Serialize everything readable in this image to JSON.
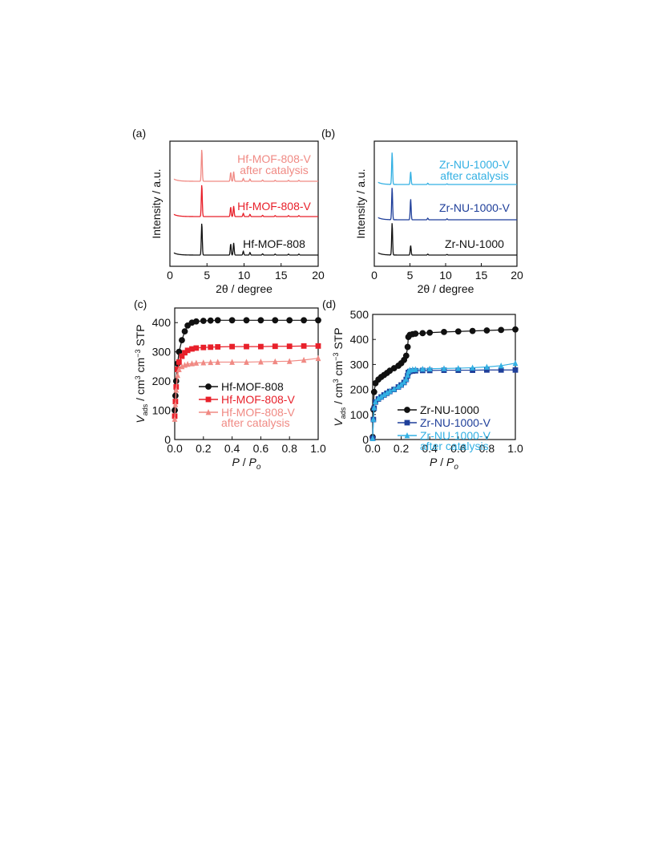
{
  "panels": {
    "a": {
      "label": "(a)"
    },
    "b": {
      "label": "(b)"
    },
    "c": {
      "label": "(c)"
    },
    "d": {
      "label": "(d)"
    }
  },
  "colors": {
    "black": "#111111",
    "red": "#e8202a",
    "salmon": "#f08a84",
    "dark_blue": "#1f3f9a",
    "light_blue": "#33b0e3"
  },
  "chart_data": [
    {
      "id": "a",
      "type": "line",
      "xlabel": "2θ / degree",
      "ylabel": "Intensity / a.u.",
      "xlim": [
        0,
        20
      ],
      "xticks": [
        0,
        5,
        10,
        15,
        20
      ],
      "y_ticks_shown": false,
      "series": [
        {
          "name": "Hf-MOF-808",
          "color": "#111111",
          "peaks": [
            [
              4.3,
              1.0
            ],
            [
              8.2,
              0.35
            ],
            [
              8.6,
              0.38
            ],
            [
              9.9,
              0.12
            ],
            [
              10.8,
              0.08
            ],
            [
              12.5,
              0.04
            ],
            [
              14.2,
              0.03
            ],
            [
              16.0,
              0.03
            ],
            [
              17.4,
              0.03
            ]
          ]
        },
        {
          "name": "Hf-MOF-808-V",
          "color": "#e8202a",
          "peaks": [
            [
              4.3,
              1.0
            ],
            [
              8.2,
              0.3
            ],
            [
              8.6,
              0.33
            ],
            [
              9.9,
              0.1
            ],
            [
              10.8,
              0.07
            ],
            [
              12.5,
              0.04
            ],
            [
              14.2,
              0.03
            ],
            [
              16.0,
              0.03
            ],
            [
              17.4,
              0.03
            ]
          ]
        },
        {
          "name": "Hf-MOF-808-V",
          "name_line2": "after catalysis",
          "color": "#f08a84",
          "peaks": [
            [
              4.3,
              1.0
            ],
            [
              8.2,
              0.28
            ],
            [
              8.6,
              0.3
            ],
            [
              9.9,
              0.09
            ],
            [
              10.8,
              0.07
            ],
            [
              12.5,
              0.04
            ],
            [
              14.2,
              0.03
            ],
            [
              16.0,
              0.03
            ],
            [
              17.4,
              0.03
            ]
          ]
        }
      ]
    },
    {
      "id": "b",
      "type": "line",
      "xlabel": "2θ / degree",
      "ylabel": "Intensity / a.u.",
      "xlim": [
        0,
        20
      ],
      "xticks": [
        0,
        5,
        10,
        15,
        20
      ],
      "y_ticks_shown": false,
      "series": [
        {
          "name": "Zr-NU-1000",
          "color": "#111111",
          "peaks": [
            [
              2.5,
              1.0
            ],
            [
              5.1,
              0.3
            ],
            [
              7.5,
              0.03
            ],
            [
              10.2,
              0.02
            ]
          ]
        },
        {
          "name": "Zr-NU-1000-V",
          "color": "#1f3f9a",
          "peaks": [
            [
              2.5,
              1.0
            ],
            [
              5.1,
              0.65
            ],
            [
              7.5,
              0.05
            ],
            [
              10.2,
              0.03
            ]
          ]
        },
        {
          "name": "Zr-NU-1000-V",
          "name_line2": "after catalysis",
          "color": "#33b0e3",
          "peaks": [
            [
              2.5,
              1.0
            ],
            [
              5.1,
              0.4
            ],
            [
              7.5,
              0.04
            ],
            [
              10.2,
              0.02
            ]
          ]
        }
      ]
    },
    {
      "id": "c",
      "type": "scatter",
      "xlabel": "P / Po",
      "ylabel": "Vads / cm3 cm-3 STP",
      "xlim": [
        0,
        1.0
      ],
      "ylim": [
        0,
        450
      ],
      "xticks": [
        0.0,
        0.2,
        0.4,
        0.6,
        0.8,
        1.0
      ],
      "yticks": [
        0,
        100,
        200,
        300,
        400
      ],
      "legend_position": "center-right",
      "series": [
        {
          "name": "Hf-MOF-808",
          "color": "#111111",
          "marker": "circle",
          "x": [
            0.0,
            0.005,
            0.01,
            0.02,
            0.03,
            0.05,
            0.07,
            0.09,
            0.12,
            0.15,
            0.2,
            0.25,
            0.3,
            0.4,
            0.5,
            0.6,
            0.7,
            0.8,
            0.9,
            1.0
          ],
          "y": [
            100,
            150,
            200,
            260,
            300,
            340,
            370,
            390,
            400,
            404,
            406,
            407,
            408,
            408,
            408,
            408,
            408,
            408,
            408,
            408
          ]
        },
        {
          "name": "Hf-MOF-808-V",
          "color": "#e8202a",
          "marker": "square",
          "x": [
            0.0,
            0.005,
            0.01,
            0.02,
            0.03,
            0.05,
            0.07,
            0.09,
            0.12,
            0.15,
            0.2,
            0.25,
            0.3,
            0.4,
            0.5,
            0.6,
            0.7,
            0.8,
            0.9,
            1.0
          ],
          "y": [
            80,
            130,
            180,
            240,
            265,
            285,
            297,
            305,
            310,
            313,
            315,
            316,
            317,
            318,
            318,
            318,
            319,
            319,
            320,
            320
          ]
        },
        {
          "name": "Hf-MOF-808-V",
          "name_line2": "after catalysis",
          "color": "#f08a84",
          "marker": "triangle",
          "x": [
            0.0,
            0.005,
            0.01,
            0.02,
            0.03,
            0.05,
            0.07,
            0.09,
            0.12,
            0.15,
            0.2,
            0.25,
            0.3,
            0.4,
            0.5,
            0.6,
            0.7,
            0.8,
            0.9,
            1.0
          ],
          "y": [
            70,
            120,
            170,
            220,
            240,
            250,
            255,
            258,
            260,
            262,
            263,
            264,
            265,
            265,
            265,
            266,
            267,
            268,
            272,
            278
          ]
        }
      ]
    },
    {
      "id": "d",
      "type": "scatter",
      "xlabel": "P / Po",
      "ylabel": "Vads / cm3 cm-3 STP",
      "xlim": [
        0,
        1.0
      ],
      "ylim": [
        0,
        500
      ],
      "xticks": [
        0.0,
        0.2,
        0.4,
        0.6,
        0.8,
        1.0
      ],
      "yticks": [
        0,
        100,
        200,
        300,
        400,
        500
      ],
      "legend_position": "bottom-right",
      "series": [
        {
          "name": "Zr-NU-1000",
          "color": "#111111",
          "marker": "circle",
          "x": [
            0.0,
            0.005,
            0.01,
            0.02,
            0.04,
            0.06,
            0.08,
            0.1,
            0.12,
            0.15,
            0.18,
            0.2,
            0.22,
            0.235,
            0.245,
            0.25,
            0.26,
            0.28,
            0.3,
            0.35,
            0.4,
            0.5,
            0.6,
            0.7,
            0.8,
            0.9,
            1.0
          ],
          "y": [
            10,
            120,
            190,
            225,
            240,
            250,
            258,
            266,
            275,
            285,
            295,
            305,
            318,
            335,
            370,
            410,
            418,
            421,
            423,
            425,
            427,
            430,
            432,
            434,
            436,
            438,
            440
          ]
        },
        {
          "name": "Zr-NU-1000-V",
          "color": "#1f3f9a",
          "marker": "square",
          "x": [
            0.0,
            0.005,
            0.01,
            0.02,
            0.04,
            0.06,
            0.08,
            0.1,
            0.12,
            0.15,
            0.18,
            0.2,
            0.22,
            0.235,
            0.245,
            0.25,
            0.26,
            0.28,
            0.3,
            0.35,
            0.4,
            0.5,
            0.6,
            0.7,
            0.8,
            0.9,
            1.0
          ],
          "y": [
            5,
            80,
            125,
            150,
            162,
            170,
            178,
            185,
            192,
            200,
            210,
            218,
            228,
            240,
            255,
            268,
            272,
            274,
            275,
            276,
            276,
            277,
            277,
            277,
            278,
            278,
            278
          ]
        },
        {
          "name": "Zr-NU-1000-V",
          "name_line2": "after catalysis",
          "color": "#33b0e3",
          "marker": "triangle",
          "x": [
            0.0,
            0.005,
            0.01,
            0.02,
            0.04,
            0.06,
            0.08,
            0.1,
            0.12,
            0.15,
            0.18,
            0.2,
            0.22,
            0.235,
            0.245,
            0.25,
            0.26,
            0.28,
            0.3,
            0.35,
            0.4,
            0.5,
            0.6,
            0.7,
            0.8,
            0.9,
            1.0
          ],
          "y": [
            5,
            82,
            128,
            152,
            165,
            172,
            180,
            187,
            194,
            202,
            212,
            220,
            230,
            242,
            258,
            272,
            278,
            280,
            281,
            282,
            283,
            284,
            285,
            287,
            290,
            295,
            305
          ]
        }
      ]
    }
  ]
}
